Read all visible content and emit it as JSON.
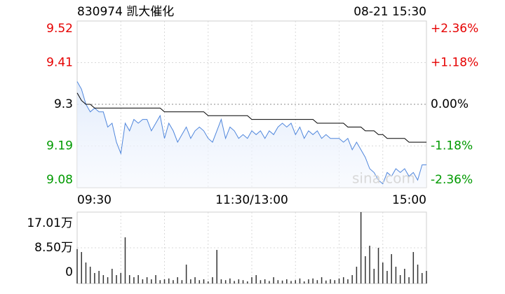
{
  "chart_data": [
    {
      "type": "line",
      "title": "830974 凯大催化",
      "subtitle": "08-21 15:30",
      "watermark": "sina.com",
      "categories": [
        "09:30",
        null,
        null,
        null,
        null,
        null,
        null,
        null,
        null,
        null,
        null,
        null,
        null,
        null,
        null,
        null,
        null,
        null,
        null,
        null,
        null,
        null,
        null,
        null,
        null,
        null,
        null,
        null,
        null,
        null,
        null,
        null,
        null,
        null,
        null,
        null,
        null,
        null,
        null,
        null,
        "11:30/13:00",
        null,
        null,
        null,
        null,
        null,
        null,
        null,
        null,
        null,
        null,
        null,
        null,
        null,
        null,
        null,
        null,
        null,
        null,
        null,
        null,
        null,
        null,
        null,
        null,
        null,
        null,
        null,
        null,
        null,
        null,
        null,
        null,
        null,
        null,
        null,
        null,
        null,
        null,
        null,
        "15:00"
      ],
      "series": [
        {
          "color": "#4f86dc",
          "values": [
            9.36,
            9.34,
            9.3,
            9.28,
            9.29,
            9.28,
            9.28,
            9.24,
            9.25,
            9.2,
            9.17,
            9.25,
            9.23,
            9.26,
            9.25,
            9.26,
            9.26,
            9.23,
            9.25,
            9.27,
            9.21,
            9.25,
            9.23,
            9.2,
            9.22,
            9.24,
            9.21,
            9.23,
            9.24,
            9.23,
            9.21,
            9.2,
            9.23,
            9.26,
            9.21,
            9.24,
            9.23,
            9.21,
            9.22,
            9.21,
            9.23,
            9.22,
            9.23,
            9.21,
            9.23,
            9.22,
            9.24,
            9.25,
            9.24,
            9.25,
            9.22,
            9.24,
            9.21,
            9.23,
            9.22,
            9.23,
            9.21,
            9.22,
            9.21,
            9.21,
            9.21,
            9.2,
            9.21,
            9.18,
            9.2,
            9.18,
            9.16,
            9.13,
            9.12,
            9.1,
            9.09,
            9.12,
            9.11,
            9.13,
            9.12,
            9.13,
            9.11,
            9.12,
            9.1,
            9.14,
            9.14
          ]
        },
        {
          "color": "#000000",
          "values": [
            9.33,
            9.31,
            9.3,
            9.3,
            9.29,
            9.29,
            9.29,
            9.29,
            9.29,
            9.29,
            9.29,
            9.29,
            9.29,
            9.29,
            9.29,
            9.29,
            9.29,
            9.29,
            9.29,
            9.29,
            9.28,
            9.28,
            9.28,
            9.28,
            9.28,
            9.28,
            9.28,
            9.28,
            9.28,
            9.28,
            9.27,
            9.27,
            9.27,
            9.27,
            9.27,
            9.27,
            9.27,
            9.27,
            9.27,
            9.27,
            9.26,
            9.26,
            9.26,
            9.26,
            9.26,
            9.26,
            9.26,
            9.26,
            9.26,
            9.26,
            9.26,
            9.26,
            9.26,
            9.26,
            9.26,
            9.25,
            9.25,
            9.25,
            9.25,
            9.25,
            9.25,
            9.25,
            9.24,
            9.24,
            9.24,
            9.24,
            9.23,
            9.23,
            9.23,
            9.22,
            9.22,
            9.21,
            9.21,
            9.21,
            9.21,
            9.21,
            9.2,
            9.2,
            9.2,
            9.2,
            9.2
          ]
        }
      ],
      "ylim": [
        9.08,
        9.52
      ],
      "yticks": [
        9.52,
        9.41,
        9.3,
        9.19,
        9.08
      ],
      "y2lim": [
        -2.36,
        2.36
      ],
      "y2ticks": [
        {
          "value": 2.36,
          "label": "+2.36%"
        },
        {
          "value": 1.18,
          "label": "+1.18%"
        },
        {
          "value": 0,
          "label": "0.00%"
        },
        {
          "value": -1.18,
          "label": "-1.18%"
        },
        {
          "value": -2.36,
          "label": "-2.36%"
        }
      ],
      "grid": true,
      "up_color": "#e60000",
      "down_color": "#009a00"
    },
    {
      "type": "bar",
      "color": "#333333",
      "values": [
        8.2,
        7.5,
        5,
        4,
        2.5,
        3,
        2,
        1.5,
        3.5,
        2,
        2.5,
        11,
        2,
        1.5,
        2,
        1,
        1.5,
        1,
        2,
        0.8,
        1,
        1.2,
        0.8,
        1.5,
        0.8,
        4.5,
        1,
        1.5,
        0.8,
        1,
        0.5,
        1.5,
        8,
        1,
        0.8,
        1.2,
        0.6,
        1,
        0.8,
        0.5,
        1.5,
        2,
        0.8,
        1,
        0.6,
        1.5,
        0.8,
        0.7,
        1,
        0.6,
        0.8,
        1.2,
        0.5,
        1,
        1.2,
        0.8,
        1.5,
        0.7,
        1,
        0.8,
        1.2,
        1.5,
        1,
        2,
        4,
        17.01,
        6.5,
        9,
        3.5,
        8.5,
        5,
        3,
        7,
        4,
        2,
        3.5,
        1.5,
        7.5,
        4.5,
        2.5,
        3
      ],
      "ylim": [
        0,
        17.01
      ],
      "yticks": [
        {
          "value": 17.01,
          "label": "17.01万"
        },
        {
          "value": 8.5,
          "label": "8.50万"
        },
        0
      ],
      "grid": true
    }
  ]
}
